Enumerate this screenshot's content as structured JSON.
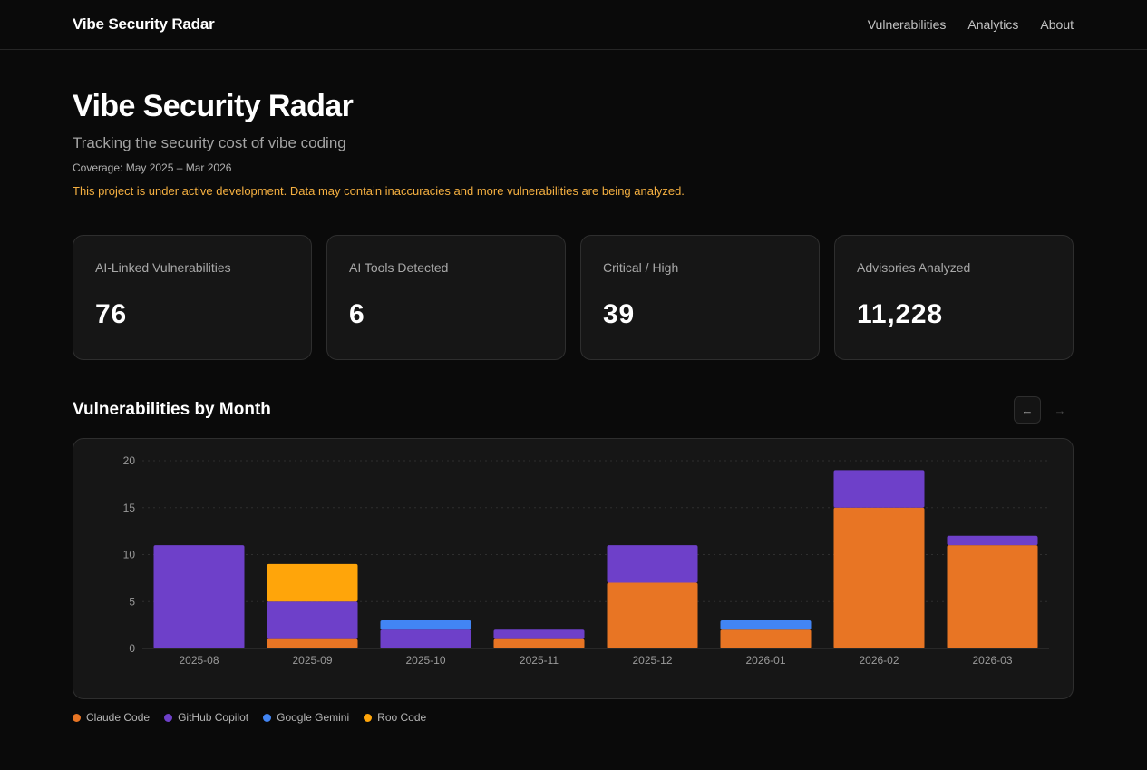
{
  "header": {
    "brand": "Vibe Security Radar",
    "nav": [
      "Vulnerabilities",
      "Analytics",
      "About"
    ]
  },
  "hero": {
    "title": "Vibe Security Radar",
    "subtitle": "Tracking the security cost of vibe coding",
    "coverage": "Coverage: May 2025 – Mar 2026",
    "notice": "This project is under active development. Data may contain inaccuracies and more vulnerabilities are being analyzed."
  },
  "stats": [
    {
      "label": "AI-Linked Vulnerabilities",
      "value": "76"
    },
    {
      "label": "AI Tools Detected",
      "value": "6"
    },
    {
      "label": "Critical / High",
      "value": "39"
    },
    {
      "label": "Advisories Analyzed",
      "value": "11,228"
    }
  ],
  "chart_section": {
    "title": "Vulnerabilities by Month",
    "prev_icon": "←",
    "next_icon": "→"
  },
  "colors": {
    "Claude Code": "#e87524",
    "GitHub Copilot": "#6e40c9",
    "Google Gemini": "#4285f4",
    "Roo Code": "#ffa50a"
  },
  "chart_data": {
    "type": "bar",
    "stacked": true,
    "categories": [
      "2025-08",
      "2025-09",
      "2025-10",
      "2025-11",
      "2025-12",
      "2026-01",
      "2026-02",
      "2026-03"
    ],
    "series": [
      {
        "name": "Claude Code",
        "values": [
          0,
          1,
          0,
          1,
          7,
          2,
          15,
          11
        ]
      },
      {
        "name": "GitHub Copilot",
        "values": [
          11,
          4,
          2,
          1,
          4,
          0,
          4,
          1
        ]
      },
      {
        "name": "Google Gemini",
        "values": [
          0,
          0,
          1,
          0,
          0,
          1,
          0,
          0
        ]
      },
      {
        "name": "Roo Code",
        "values": [
          0,
          4,
          0,
          0,
          0,
          0,
          0,
          0
        ]
      }
    ],
    "yticks": [
      0,
      5,
      10,
      15,
      20
    ],
    "ylim": [
      0,
      20
    ],
    "grid": true,
    "legend_position": "bottom-left"
  }
}
